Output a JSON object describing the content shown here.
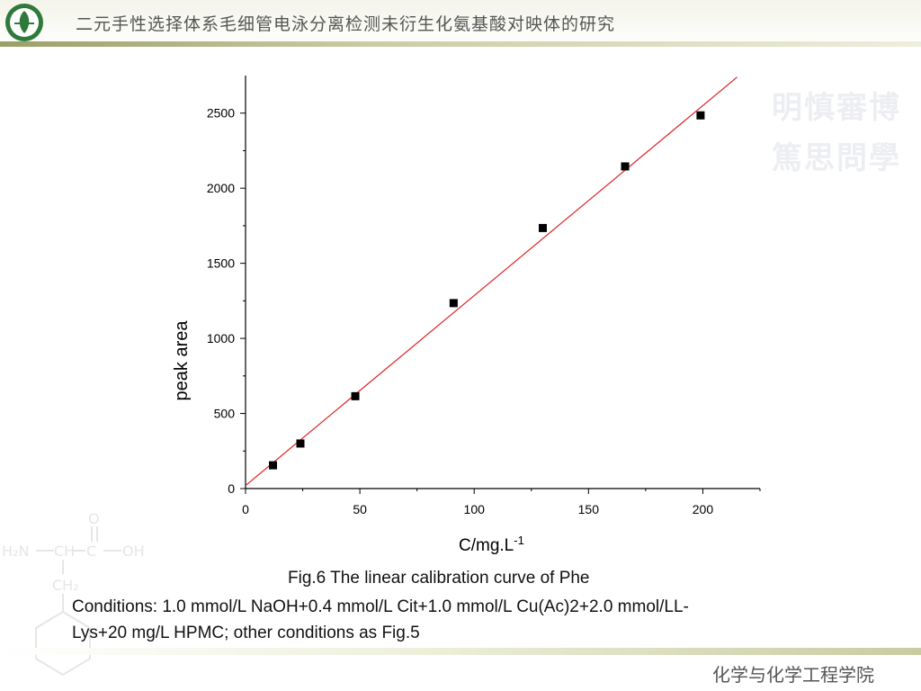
{
  "header": {
    "title": "二元手性选择体系毛细管电泳分离检测未衍生化氨基酸对映体的研究"
  },
  "motto": {
    "line1": "明慎審博",
    "line2": "篤思問學"
  },
  "chart_data": {
    "type": "scatter",
    "xlabel": "C/mg.L",
    "xlabel_sup": "-1",
    "ylabel": "peak area",
    "xlim": [
      0,
      225
    ],
    "ylim": [
      0,
      2750
    ],
    "x_ticks": [
      0,
      50,
      100,
      150,
      200
    ],
    "y_ticks": [
      0,
      500,
      1000,
      1500,
      2000,
      2500
    ],
    "grid": false,
    "points": [
      {
        "x": 12,
        "y": 155
      },
      {
        "x": 24,
        "y": 300
      },
      {
        "x": 48,
        "y": 615
      },
      {
        "x": 91,
        "y": 1235
      },
      {
        "x": 130,
        "y": 1735
      },
      {
        "x": 166,
        "y": 2145
      },
      {
        "x": 199,
        "y": 2485
      }
    ],
    "fit_line": {
      "x": [
        0,
        215
      ],
      "y": [
        20,
        2740
      ],
      "color": "#e02020"
    },
    "marker_color": "#000000"
  },
  "caption": {
    "line1": "Fig.6 The linear calibration curve of Phe",
    "line2": "Conditions: 1.0 mmol/L NaOH+0.4 mmol/L Cit+1.0 mmol/L Cu(Ac)2+2.0 mmol/LL-",
    "line3": "Lys+20 mg/L HPMC; other conditions as Fig.5"
  },
  "footer": {
    "text": "化学与化学工程学院"
  }
}
